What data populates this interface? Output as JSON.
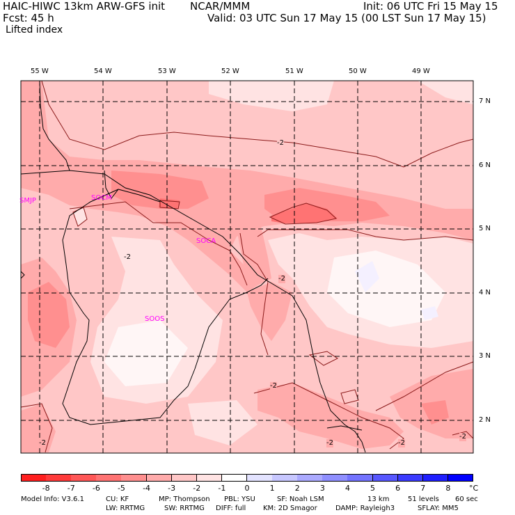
{
  "header": {
    "title_left": "HAIC-HIWC 13km ARW-GFS init",
    "title_mid": "NCAR/MMM",
    "init": "Init: 06 UTC Fri 15 May 15",
    "fcst": "Fcst:   45 h",
    "valid": "Valid: 03 UTC Sun 17 May 15 (00 LST Sun 17 May 15)",
    "field": "Lifted index"
  },
  "map": {
    "lon_labels": [
      "55 W",
      "54 W",
      "53 W",
      "52 W",
      "51 W",
      "50 W",
      "49 W"
    ],
    "lat_labels": [
      "7 N",
      "6 N",
      "5 N",
      "4 N",
      "3 N",
      "2 N"
    ],
    "contour_label": "-2",
    "stations": [
      "SMJP",
      "SOCM",
      "SOCA",
      "SOOS"
    ]
  },
  "colorbar": {
    "labels": [
      "-8",
      "-7",
      "-6",
      "-5",
      "-4",
      "-3",
      "-2",
      "-1",
      "0",
      "1",
      "2",
      "3",
      "4",
      "5",
      "6",
      "7",
      "8"
    ],
    "unit": "°C",
    "colors": [
      "#ff1f1f",
      "#ff3b3b",
      "#ff5757",
      "#ff7373",
      "#ff8f8f",
      "#ffabab",
      "#ffc7c7",
      "#ffe3e3",
      "#ffffff",
      "#e3e3ff",
      "#c7c7ff",
      "#abaaff",
      "#8f8fff",
      "#7373ff",
      "#5757ff",
      "#3b3bff",
      "#1f1fff",
      "#0000ff"
    ]
  },
  "footer": {
    "line1": [
      "Model Info: V3.6.1",
      "CU: KF",
      "MP: Thompson",
      "PBL: YSU",
      "SF: Noah LSM",
      "13 km",
      "51 levels",
      "60 sec"
    ],
    "line2": [
      "LW: RRTMG",
      "SW: RRTMG",
      "DIFF: full",
      "KM: 2D Smagor",
      "DAMP: Rayleigh3",
      "SFLAY: MM5"
    ]
  }
}
